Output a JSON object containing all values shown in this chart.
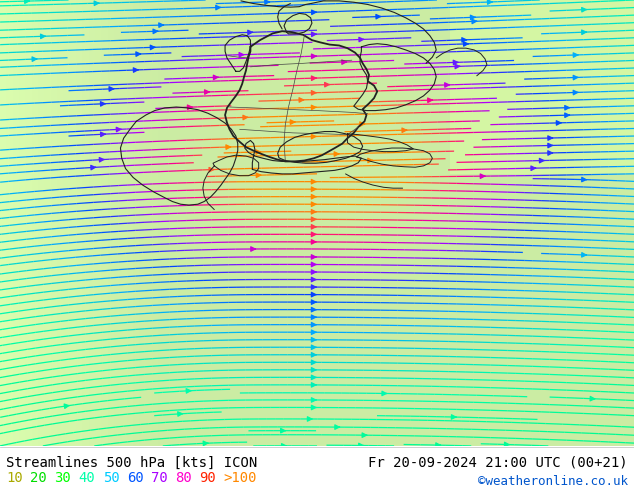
{
  "title_left": "Streamlines 500 hPa [kts] ICON",
  "title_right": "Fr 20-09-2024 21:00 UTC (00+21)",
  "credit": "©weatheronline.co.uk",
  "legend_values": [
    "10",
    "20",
    "30",
    "40",
    "50",
    "60",
    "70",
    "80",
    "90",
    ">100"
  ],
  "legend_colors": [
    "#aaaa00",
    "#00dd00",
    "#00ff00",
    "#00ffaa",
    "#00ccff",
    "#0055ff",
    "#aa00ff",
    "#ff00cc",
    "#ff2200",
    "#ff8800"
  ],
  "background_color": "#ffffff",
  "font_family": "monospace",
  "title_fontsize": 10,
  "credit_fontsize": 9,
  "legend_fontsize": 10,
  "fig_width": 6.34,
  "fig_height": 4.9,
  "dpi": 100
}
